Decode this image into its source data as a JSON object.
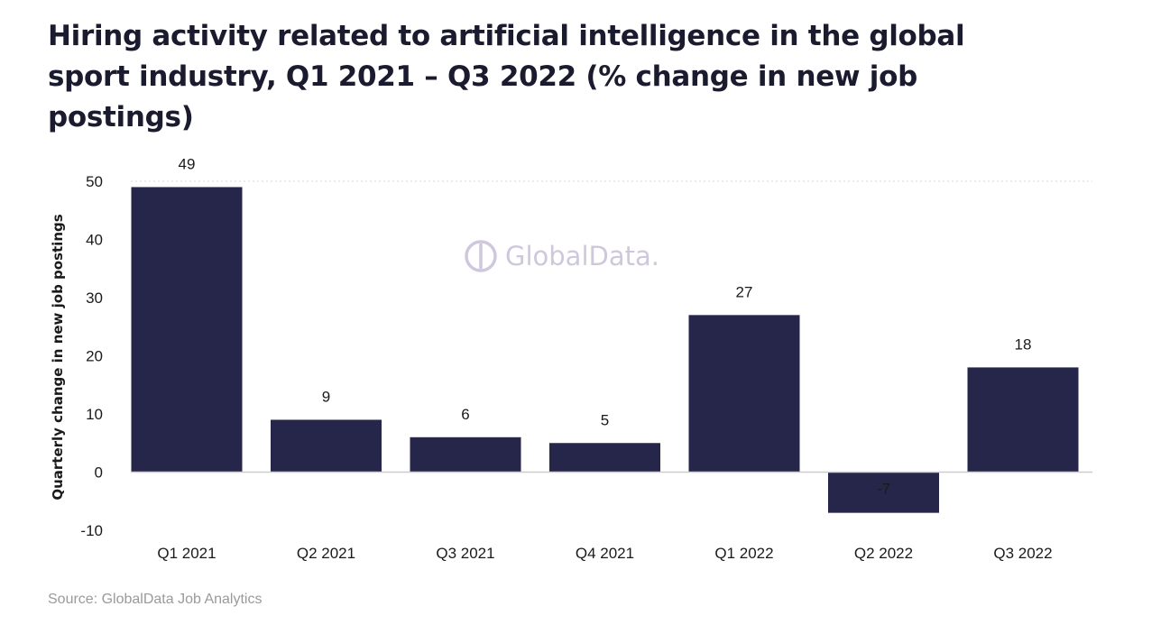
{
  "page": {
    "title": "Hiring activity related to artificial intelligence in the global sport industry, Q1 2021 – Q3 2022 (% change in new job postings)",
    "source": "Source: GlobalData Job Analytics",
    "watermark": "GlobalData."
  },
  "colors": {
    "bar": "#26264a",
    "gridline": "#d9d9d9",
    "zero_line": "#cccccc",
    "watermark": "#cfc8dd"
  },
  "chart_data": {
    "type": "bar",
    "title": "Hiring activity related to artificial intelligence in the global sport industry, Q1 2021 – Q3 2022 (% change in new job postings)",
    "xlabel": "",
    "ylabel": "Quarterly change in new job postings",
    "categories": [
      "Q1 2021",
      "Q2 2021",
      "Q3 2021",
      "Q4 2021",
      "Q1 2022",
      "Q2 2022",
      "Q3 2022"
    ],
    "values": [
      49,
      9,
      6,
      5,
      27,
      -7,
      18
    ],
    "data_labels": [
      "49",
      "9",
      "6",
      "5",
      "27",
      "-7",
      "18"
    ],
    "ylim": [
      -10,
      50
    ],
    "yticks": [
      50,
      40,
      30,
      20,
      10,
      0,
      -10
    ],
    "ytick_labels": [
      "50",
      "40",
      "30",
      "20",
      "10",
      "0",
      "-10"
    ],
    "grid": "top dotted line only",
    "legend": "none"
  }
}
